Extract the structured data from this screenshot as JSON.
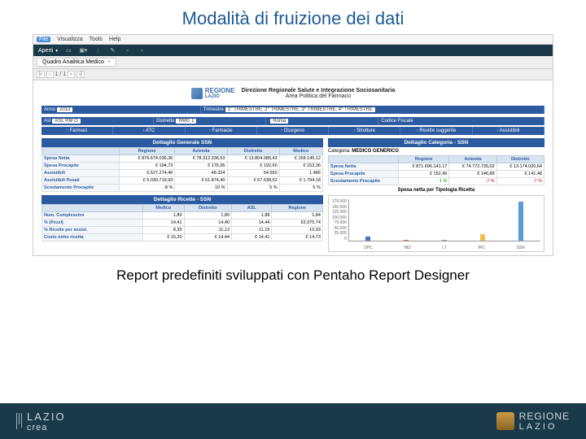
{
  "slide": {
    "title": "Modalità di fruizione dei dati",
    "caption": "Report predefiniti sviluppati con Pentaho Report Designer"
  },
  "menubar": {
    "file": "File",
    "view": "Visualizza",
    "tools": "Tools",
    "help": "Help"
  },
  "toolbar": {
    "open": "Aperti"
  },
  "tab": {
    "label": "Quadro Analitica Medico",
    "pager": {
      "page": "1",
      "sep": "/",
      "total": "1"
    }
  },
  "report_header": {
    "logo_brand": "REGIONE",
    "logo_sub": "LAZIO",
    "title1": "Direzione Regionale Salute e Integrazione Sociosanitaria",
    "title2": "Area Politica del Farmaco"
  },
  "filters": {
    "anno_lbl": "Anno",
    "anno": "2013",
    "tri_lbl": "Trimestre",
    "tri": "1° TRIMESTRE, 2° TRIMESTRE, 3° TRIMESTRE, 4° TRIMESTRE",
    "asl_lbl": "Asl",
    "asl": "ASL RM G",
    "dist_lbl": "Distretto",
    "dist": "RMG 1",
    "com_lbl": "",
    "com": "Roma",
    "cod_lbl": "Codice Fiscale",
    "cod": ""
  },
  "nav": {
    "n1": "Farmaci",
    "n2": "ATC",
    "n3": "Farmacie",
    "n4": "Ossigeno",
    "n5": "Strutture",
    "n6": "Ricette suggerite",
    "n7": "Assistibili"
  },
  "ssn": {
    "title": "Dettaglio Generale SSN",
    "cols": {
      "c1": "Regione",
      "c2": "Azienda",
      "c3": "Distretto",
      "c4": "Medico"
    },
    "rows": [
      {
        "k": "Spesa Netta",
        "r": "€ 876.674.036,36",
        "a": "€ 78.312.336,53",
        "d": "€ 13.804.085,43",
        "m": "€ 158.145,12"
      },
      {
        "k": "Spesa Procapite",
        "r": "€ 194,73",
        "a": "€ 176,95",
        "d": "€ 192,60",
        "m": "€ 153,36"
      },
      {
        "k": "Assistibili",
        "r": "5.527.274,46",
        "a": "48.324",
        "d": "54.550",
        "m": "1.486"
      },
      {
        "k": "Assistibili Pesati",
        "r": "€ 5.030.719,93",
        "a": "€ 61.874,40",
        "d": "€ 67.538,52",
        "m": "€ 1.794,18"
      },
      {
        "k": "Scostamento Procapite",
        "r": "-8 %",
        "a": "10 %",
        "d": "5 %",
        "m": "5 %"
      }
    ]
  },
  "cat": {
    "title": "Dettaglio Categoria - SSN",
    "line_lbl": "Categoria:",
    "line_val": "MEDICO GENERICO",
    "cols": {
      "c1": "Regione",
      "c2": "Azienda",
      "c3": "Distretto"
    },
    "rows": [
      {
        "k": "Spesa Netta",
        "r": "€ 871.696.141,17",
        "a": "€ 74.772.735,02",
        "d": "€ 13.174.020,64"
      },
      {
        "k": "Spesa Procapite",
        "r": "€ 152,49",
        "a": "€ 146,89",
        "d": "€ 141,48"
      },
      {
        "k": "Scostamento Procapite",
        "r": "1 %",
        "a": "-7 %",
        "d": "-7 %",
        "cls": [
          "green",
          "red",
          "red"
        ]
      }
    ]
  },
  "ricette": {
    "title": "Dettaglio Ricette - SSN",
    "cols": {
      "c1": "Medico",
      "c2": "Distretto",
      "c3": "ASL",
      "c4": "Regione"
    },
    "rows": [
      {
        "k": "Num. Complessivo",
        "m": "1,80",
        "d": "1,80",
        "a": "1,88",
        "r": "1,84"
      },
      {
        "k": "% (Pezzi)",
        "m": "14,41",
        "d": "14,40",
        "a": "14,44",
        "r": "63.375,74"
      },
      {
        "k": "% Ricette per assist.",
        "m": "8,35",
        "d": "11,13",
        "a": "11,15",
        "r": "10,93"
      },
      {
        "k": "Costo netto ricetta",
        "m": "€ 15,20",
        "d": "€ 14,44",
        "a": "€ 14,41",
        "r": "€ 14,73"
      }
    ]
  },
  "chart": {
    "title": "Spesa netta per Tipologia Ricetta",
    "ymax": 175000,
    "yticks": [
      "175.000",
      "150.000",
      "125.000",
      "100.000",
      "75.000",
      "50.000",
      "25.000",
      "0"
    ],
    "series": [
      {
        "label": "DPC",
        "value": 16000,
        "color": "#4a72c4"
      },
      {
        "label": "IND",
        "value": 4000,
        "color": "#e07a3a"
      },
      {
        "label": "I.T",
        "value": 2500,
        "color": "#9aa0a6"
      },
      {
        "label": "IRC",
        "value": 28000,
        "color": "#f2c14e"
      },
      {
        "label": "SSN",
        "value": 165000,
        "color": "#5a9bd5"
      }
    ]
  },
  "footer": {
    "left_brand": "LAZIO",
    "left_sub": "crea",
    "right_brand": "REGIONE",
    "right_sub": "LAZIO"
  }
}
